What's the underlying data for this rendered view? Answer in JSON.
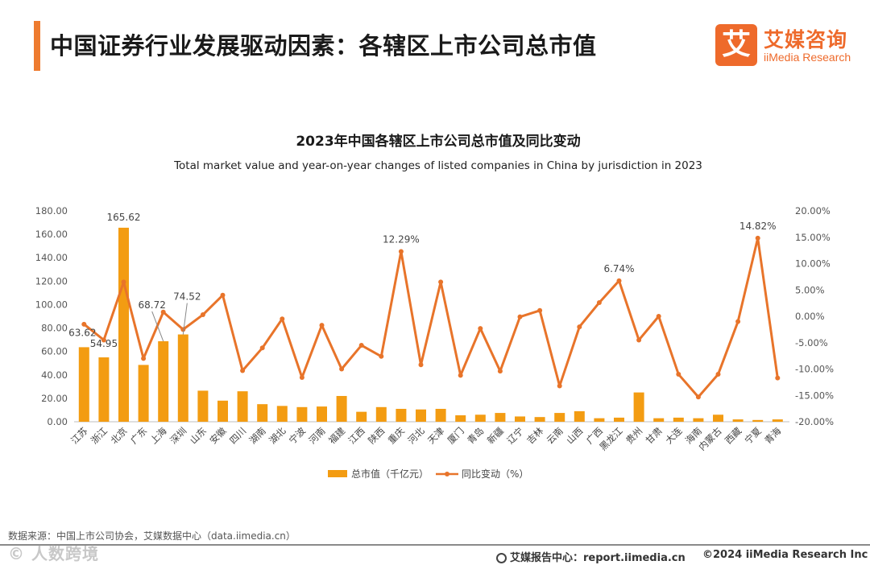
{
  "header": {
    "title": "中国证券行业发展驱动因素：各辖区上市公司总市值",
    "logo_mark": "艾",
    "logo_cn": "艾媒咨询",
    "logo_en": "iiMedia Research"
  },
  "chart_data": {
    "type": "bar+line",
    "title": "2023年中国各辖区上市公司总市值及同比变动",
    "subtitle": "Total market value and year-on-year changes of listed companies in China by jurisdiction in 2023",
    "categories": [
      "江苏",
      "浙江",
      "北京",
      "广东",
      "上海",
      "深圳",
      "山东",
      "安徽",
      "四川",
      "湖南",
      "湖北",
      "宁波",
      "河南",
      "福建",
      "江西",
      "陕西",
      "重庆",
      "河北",
      "天津",
      "厦门",
      "青岛",
      "新疆",
      "辽宁",
      "吉林",
      "云南",
      "山西",
      "广西",
      "黑龙江",
      "贵州",
      "甘肃",
      "大连",
      "海南",
      "内蒙古",
      "西藏",
      "宁夏",
      "青海"
    ],
    "series": [
      {
        "name": "总市值（千亿元）",
        "type": "bar",
        "axis": "left",
        "color": "#f39c12",
        "values": [
          63.62,
          54.95,
          165.62,
          48.5,
          68.72,
          74.52,
          26.5,
          18,
          26,
          15,
          13.5,
          12.5,
          13,
          22,
          8.5,
          12.5,
          11,
          10.5,
          11,
          5.5,
          6,
          7.5,
          4.5,
          4,
          7.5,
          9,
          3,
          3.5,
          25,
          3,
          3.5,
          3,
          6,
          2,
          1.5,
          2
        ]
      },
      {
        "name": "同比变动（%）",
        "type": "line",
        "axis": "right",
        "color": "#e8742a",
        "values": [
          -1.5,
          -4.5,
          6.5,
          -8,
          0.8,
          -2.5,
          0.3,
          4,
          -10.3,
          -6,
          -0.5,
          -11.6,
          -1.7,
          -10,
          -5.5,
          -7.6,
          12.29,
          -9.2,
          6.5,
          -11.2,
          -2.3,
          -10.4,
          -0.1,
          1.1,
          -13.2,
          -2,
          2.6,
          6.74,
          -4.5,
          0,
          -11,
          -15.3,
          -11,
          -1,
          14.82,
          -11.7
        ]
      }
    ],
    "bar_labels": [
      {
        "index": 0,
        "text": "63.62"
      },
      {
        "index": 1,
        "text": "54.95"
      },
      {
        "index": 2,
        "text": "165.62"
      },
      {
        "index": 4,
        "text": "68.72"
      },
      {
        "index": 5,
        "text": "74.52"
      }
    ],
    "line_labels": [
      {
        "index": 16,
        "text": "12.29%"
      },
      {
        "index": 27,
        "text": "6.74%"
      },
      {
        "index": 34,
        "text": "14.82%"
      }
    ],
    "y_left": {
      "min": 0,
      "max": 180,
      "step": 20,
      "ticks": [
        "0.00",
        "20.00",
        "40.00",
        "60.00",
        "80.00",
        "100.00",
        "120.00",
        "140.00",
        "160.00",
        "180.00"
      ]
    },
    "y_right": {
      "min": -20,
      "max": 20,
      "step": 5,
      "ticks": [
        "-20.00%",
        "-15.00%",
        "-10.00%",
        "-5.00%",
        "0.00%",
        "5.00%",
        "10.00%",
        "15.00%",
        "20.00%"
      ]
    },
    "legend": {
      "position": "bottom",
      "bar_label": "总市值（千亿元）",
      "line_label": "同比变动（%）"
    },
    "grid": false
  },
  "footer": {
    "source": "数据来源：中国上市公司协会，艾媒数据中心（data.iimedia.cn）",
    "watermark": "© 人数跨境",
    "report": "艾媒报告中心：report.iimedia.cn",
    "copyright": "©2024  iiMedia Research Inc"
  }
}
